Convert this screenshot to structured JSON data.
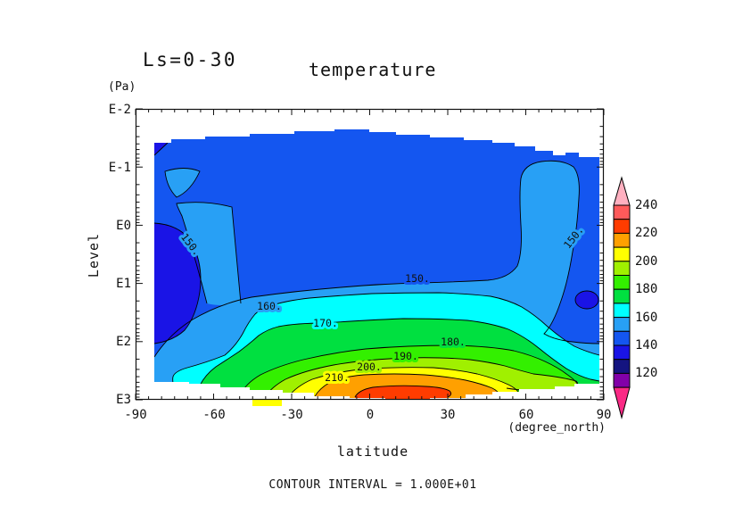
{
  "header": {
    "season_label": "Ls=0-30",
    "title": "temperature"
  },
  "axes": {
    "y": {
      "unit": "(Pa)",
      "label": "Level",
      "ticks": [
        "E-2",
        "E-1",
        "E0",
        "E1",
        "E2",
        "E3"
      ]
    },
    "x": {
      "label": "latitude",
      "unit": "(degree_north)",
      "ticks": [
        "-90",
        "-60",
        "-30",
        "0",
        "30",
        "60",
        "90"
      ]
    }
  },
  "footer": {
    "contour_interval": "CONTOUR INTERVAL = 1.000E+01"
  },
  "colorbar": {
    "labels": [
      "240",
      "220",
      "200",
      "180",
      "160",
      "140",
      "120"
    ],
    "arrow_top_color": "#FFB0C0",
    "arrow_bottom_color": "#FA2A85",
    "segment_colors_top_to_bottom": [
      "#FF5A5A",
      "#FF3C00",
      "#FFA000",
      "#FFFF00",
      "#A0F000",
      "#33F000",
      "#00E040",
      "#00FFFF",
      "#28A0F5",
      "#1456F0",
      "#1A14E6",
      "#141480",
      "#8200A8"
    ]
  },
  "chart_data": {
    "type": "heatmap",
    "subtype": "filled-contour",
    "title": "temperature",
    "season_label": "Ls=0-30",
    "xlabel": "latitude",
    "x_unit": "degree_north",
    "ylabel": "Level",
    "y_unit": "Pa",
    "x_range": [
      -90,
      90
    ],
    "x_ticks": [
      -90,
      -60,
      -30,
      0,
      30,
      60,
      90
    ],
    "y_scale": "log",
    "y_ticks": [
      "E-2",
      "E-1",
      "E0",
      "E1",
      "E2",
      "E3"
    ],
    "y_range_pa": [
      0.01,
      1000
    ],
    "contour_interval": 10,
    "bands": [
      {
        "range": "> 240",
        "color": "#FFB0C0"
      },
      {
        "range": "230-240",
        "color": "#FF5A5A"
      },
      {
        "range": "220-230",
        "color": "#FF3C00"
      },
      {
        "range": "210-220",
        "color": "#FFA000"
      },
      {
        "range": "200-210",
        "color": "#FFFF00"
      },
      {
        "range": "190-200",
        "color": "#A0F000"
      },
      {
        "range": "180-190",
        "color": "#33F000"
      },
      {
        "range": "170-180",
        "color": "#00E040"
      },
      {
        "range": "160-170",
        "color": "#00FFFF"
      },
      {
        "range": "150-160",
        "color": "#28A0F5"
      },
      {
        "range": "140-150",
        "color": "#1456F0"
      },
      {
        "range": "130-140",
        "color": "#1A14E6"
      },
      {
        "range": "120-130",
        "color": "#141480"
      },
      {
        "range": "110-120",
        "color": "#8200A8"
      },
      {
        "range": "< 110",
        "color": "#FA2A85"
      }
    ],
    "contour_labels": [
      {
        "text": "150.",
        "lat": -69,
        "level_pa": 2.1
      },
      {
        "text": "150.",
        "lat": 18,
        "level_pa": 8
      },
      {
        "text": "150.",
        "lat": 77,
        "level_pa": 1.6
      },
      {
        "text": "160.",
        "lat": -39,
        "level_pa": 25
      },
      {
        "text": "170.",
        "lat": -17,
        "level_pa": 51
      },
      {
        "text": "180.",
        "lat": 32,
        "level_pa": 100
      },
      {
        "text": "190.",
        "lat": 14,
        "level_pa": 170
      },
      {
        "text": "200.",
        "lat": 0,
        "level_pa": 260
      },
      {
        "text": "210.",
        "lat": -12,
        "level_pa": 410
      }
    ],
    "features": {
      "warmest_band": "220-230 near the surface (300-1000 Pa) between lat -15 and 30",
      "coldest_bands": "130-140 patches at lat -90 to -65 (1-60 Pa) and lat 55 to 85 (20-60 Pa)",
      "upper_atmosphere": "mostly 140-150 from 0.03 to 10 Pa, with 150-160 pockets near both poles"
    }
  }
}
